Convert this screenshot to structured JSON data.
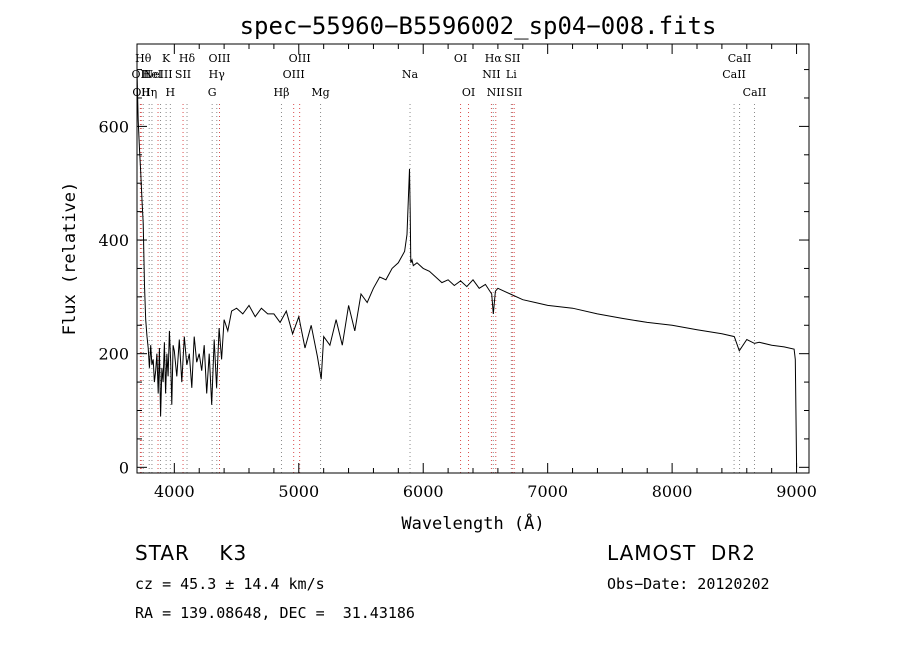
{
  "chart_data": {
    "type": "line",
    "title": "spec−55960−B5596002_sp04−008.fits",
    "xlabel": "Wavelength (Å)",
    "ylabel": "Flux (relative)",
    "xlim": [
      3700,
      9100
    ],
    "ylim": [
      -10,
      745
    ],
    "xticks": [
      4000,
      5000,
      6000,
      7000,
      8000,
      9000
    ],
    "xtick_labels": [
      "4000",
      "5000",
      "6000",
      "7000",
      "8000",
      "9000"
    ],
    "yticks": [
      0,
      200,
      400,
      600
    ],
    "ytick_labels": [
      "0",
      "200",
      "400",
      "600"
    ],
    "grid": false,
    "series": [
      {
        "color": "#000000",
        "x": [
          3700,
          3710,
          3720,
          3730,
          3740,
          3750,
          3760,
          3770,
          3780,
          3790,
          3800,
          3810,
          3820,
          3830,
          3840,
          3850,
          3860,
          3870,
          3880,
          3890,
          3900,
          3910,
          3920,
          3930,
          3940,
          3950,
          3960,
          3970,
          3980,
          3990,
          4000,
          4020,
          4040,
          4060,
          4080,
          4100,
          4120,
          4140,
          4160,
          4180,
          4200,
          4220,
          4240,
          4260,
          4280,
          4300,
          4320,
          4340,
          4360,
          4380,
          4400,
          4430,
          4460,
          4500,
          4550,
          4600,
          4650,
          4700,
          4750,
          4800,
          4850,
          4900,
          4950,
          5000,
          5050,
          5100,
          5150,
          5180,
          5200,
          5250,
          5300,
          5350,
          5400,
          5450,
          5500,
          5550,
          5600,
          5650,
          5700,
          5750,
          5800,
          5850,
          5870,
          5880,
          5890,
          5895,
          5900,
          5910,
          5920,
          5950,
          6000,
          6050,
          6100,
          6150,
          6200,
          6250,
          6300,
          6350,
          6400,
          6450,
          6500,
          6550,
          6563,
          6580,
          6600,
          6700,
          6800,
          6900,
          7000,
          7200,
          7400,
          7600,
          7800,
          8000,
          8200,
          8400,
          8500,
          8540,
          8600,
          8662,
          8700,
          8800,
          8900,
          8980,
          8990,
          9000
        ],
        "y": [
          700,
          610,
          560,
          520,
          470,
          430,
          320,
          260,
          230,
          210,
          175,
          215,
          180,
          190,
          150,
          170,
          200,
          130,
          210,
          90,
          175,
          150,
          220,
          130,
          200,
          160,
          240,
          190,
          110,
          215,
          205,
          160,
          225,
          150,
          230,
          180,
          200,
          140,
          230,
          185,
          200,
          170,
          215,
          130,
          200,
          110,
          225,
          140,
          245,
          190,
          260,
          240,
          275,
          280,
          270,
          285,
          265,
          280,
          270,
          270,
          255,
          275,
          235,
          265,
          210,
          250,
          195,
          155,
          230,
          215,
          260,
          215,
          285,
          240,
          305,
          290,
          315,
          335,
          330,
          350,
          360,
          380,
          410,
          470,
          525,
          450,
          360,
          365,
          355,
          360,
          350,
          345,
          335,
          325,
          330,
          320,
          328,
          318,
          330,
          315,
          322,
          305,
          270,
          310,
          315,
          305,
          295,
          290,
          285,
          280,
          270,
          262,
          255,
          250,
          242,
          235,
          230,
          205,
          225,
          218,
          220,
          215,
          212,
          208,
          190,
          0
        ]
      }
    ],
    "line_features": [
      {
        "wl": 3727,
        "color": "#d94b4b",
        "label": "OII",
        "row": 2
      },
      {
        "wl": 3734,
        "color": "#d94b4b",
        "label": "OII",
        "row": 3
      },
      {
        "wl": 3750,
        "color": "#8a8a8a",
        "label": "Hθ",
        "row": 1
      },
      {
        "wl": 3798,
        "color": "#8a8a8a",
        "label": "Hη",
        "row": 3
      },
      {
        "wl": 3820,
        "color": "#8a8a8a",
        "label": "HeI",
        "row": 2
      },
      {
        "wl": 3869,
        "color": "#d94b4b",
        "label": "NeIII",
        "row": 2
      },
      {
        "wl": 3889,
        "color": "#8a8a8a",
        "label": "",
        "row": 0
      },
      {
        "wl": 3934,
        "color": "#8a8a8a",
        "label": "K",
        "row": 1
      },
      {
        "wl": 3968,
        "color": "#8a8a8a",
        "label": "H",
        "row": 3
      },
      {
        "wl": 4070,
        "color": "#d94b4b",
        "label": "SII",
        "row": 2
      },
      {
        "wl": 4102,
        "color": "#8a8a8a",
        "label": "Hδ",
        "row": 1
      },
      {
        "wl": 4304,
        "color": "#8a8a8a",
        "label": "G",
        "row": 3
      },
      {
        "wl": 4341,
        "color": "#8a8a8a",
        "label": "Hγ",
        "row": 2
      },
      {
        "wl": 4363,
        "color": "#d94b4b",
        "label": "OIII",
        "row": 1
      },
      {
        "wl": 4861,
        "color": "#8a8a8a",
        "label": "Hβ",
        "row": 3
      },
      {
        "wl": 4959,
        "color": "#d94b4b",
        "label": "OIII",
        "row": 2
      },
      {
        "wl": 5007,
        "color": "#d94b4b",
        "label": "OIII",
        "row": 1
      },
      {
        "wl": 5175,
        "color": "#8a8a8a",
        "label": "Mg",
        "row": 3
      },
      {
        "wl": 5894,
        "color": "#8a8a8a",
        "label": "Na",
        "row": 2
      },
      {
        "wl": 6300,
        "color": "#d94b4b",
        "label": "OI",
        "row": 1
      },
      {
        "wl": 6364,
        "color": "#d94b4b",
        "label": "OI",
        "row": 3
      },
      {
        "wl": 6548,
        "color": "#d94b4b",
        "label": "NII",
        "row": 2
      },
      {
        "wl": 6563,
        "color": "#8a8a8a",
        "label": "Hα",
        "row": 1
      },
      {
        "wl": 6583,
        "color": "#d94b4b",
        "label": "NII",
        "row": 3
      },
      {
        "wl": 6708,
        "color": "#8a8a8a",
        "label": "Li",
        "row": 2
      },
      {
        "wl": 6716,
        "color": "#d94b4b",
        "label": "SII",
        "row": 1
      },
      {
        "wl": 6731,
        "color": "#d94b4b",
        "label": "SII",
        "row": 3
      },
      {
        "wl": 8498,
        "color": "#8a8a8a",
        "label": "CaII",
        "row": 2
      },
      {
        "wl": 8542,
        "color": "#8a8a8a",
        "label": "CaII",
        "row": 1
      },
      {
        "wl": 8662,
        "color": "#8a8a8a",
        "label": "CaII",
        "row": 3
      }
    ]
  },
  "info": {
    "class": "STAR    K3",
    "survey": "LAMOST  DR2",
    "cz": "cz = 45.3 ± 14.4 km/s",
    "obs_date": "Obs−Date: 20120202",
    "coords": "RA = 139.08648, DEC =  31.43186"
  }
}
